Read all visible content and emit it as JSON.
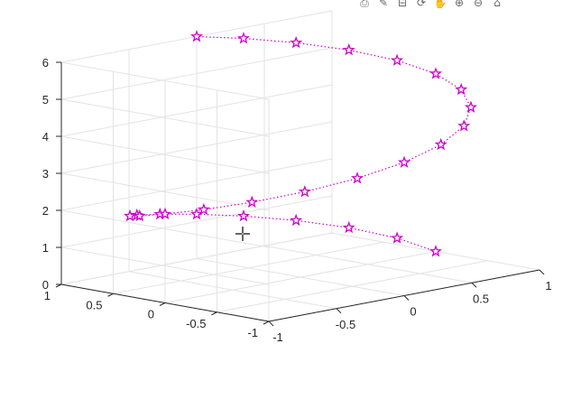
{
  "toolbar": {
    "buttons": [
      {
        "name": "export-icon",
        "glyph": "⎙"
      },
      {
        "name": "brush-icon",
        "glyph": "✎"
      },
      {
        "name": "data-tips-icon",
        "glyph": "⊟"
      },
      {
        "name": "rotate-3d-icon",
        "glyph": "⟳"
      },
      {
        "name": "pan-icon",
        "glyph": "✋"
      },
      {
        "name": "zoom-in-icon",
        "glyph": "⊕"
      },
      {
        "name": "zoom-out-icon",
        "glyph": "⊖"
      },
      {
        "name": "home-icon",
        "glyph": "⌂"
      }
    ]
  },
  "chart_data": {
    "type": "line",
    "plot": "plot3",
    "title": "",
    "xlabel": "",
    "ylabel": "",
    "zlabel": "",
    "xlim": [
      -1,
      1
    ],
    "ylim": [
      -1,
      1
    ],
    "zlim": [
      0,
      6
    ],
    "xticks": [
      -1,
      -0.5,
      0,
      0.5,
      1
    ],
    "yticks": [
      -1,
      -0.5,
      0,
      0.5,
      1
    ],
    "zticks": [
      0,
      1,
      2,
      3,
      4,
      5,
      6
    ],
    "xtick_labels": [
      "-1",
      "-0.5",
      "0",
      "0.5",
      "1"
    ],
    "ytick_labels": [
      "-1",
      "-0.5",
      "0",
      "0.5",
      "1"
    ],
    "ztick_labels": [
      "0",
      "1",
      "2",
      "3",
      "4",
      "5",
      "6"
    ],
    "grid": true,
    "box": true,
    "line_style": "dotted",
    "marker": "pentagram",
    "color": "#cc00cc",
    "series": [
      {
        "x": [
          1.0,
          0.951,
          0.809,
          0.588,
          0.309,
          0.0,
          -0.309,
          -0.588,
          -0.809,
          -0.951,
          -1.0,
          -0.951,
          -0.809,
          -0.588,
          -0.309,
          0.0,
          0.309,
          0.588,
          0.809,
          0.951,
          1.0,
          0.951,
          0.809,
          0.588,
          0.309,
          0.0
        ],
        "y": [
          0.0,
          0.309,
          0.588,
          0.809,
          0.951,
          1.0,
          0.951,
          0.809,
          0.588,
          0.309,
          0.0,
          -0.309,
          -0.588,
          -0.809,
          -0.951,
          -1.0,
          -0.951,
          -0.809,
          -0.588,
          -0.309,
          0.0,
          0.309,
          0.588,
          0.809,
          0.951,
          1.0
        ],
        "z": [
          0.0,
          0.24,
          0.48,
          0.72,
          0.96,
          1.2,
          1.44,
          1.68,
          1.92,
          2.16,
          2.4,
          2.64,
          2.88,
          3.12,
          3.36,
          3.6,
          3.84,
          4.08,
          4.32,
          4.56,
          4.8,
          5.04,
          5.28,
          5.52,
          5.76,
          6.0
        ]
      }
    ]
  }
}
